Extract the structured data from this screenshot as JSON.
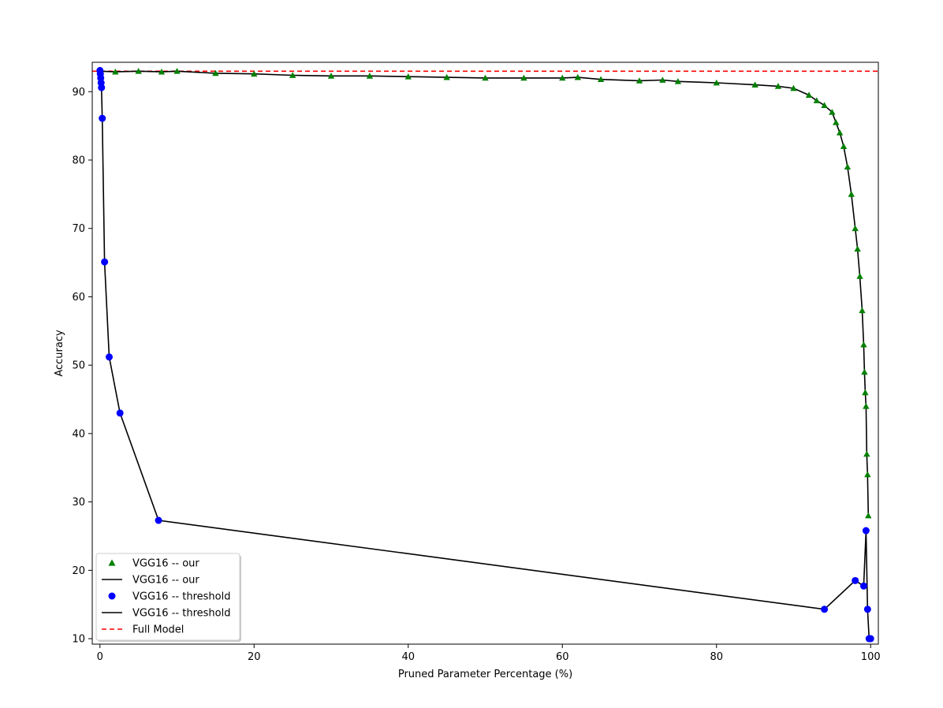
{
  "chart_data": {
    "type": "line",
    "title": "",
    "xlabel": "Pruned Parameter Percentage (%)",
    "ylabel": "Accuracy",
    "xlim": [
      -1,
      101
    ],
    "ylim": [
      9.2,
      94.3
    ],
    "xticks": [
      0,
      20,
      40,
      60,
      80,
      100
    ],
    "yticks": [
      10,
      20,
      30,
      40,
      50,
      60,
      70,
      80,
      90
    ],
    "grid": false,
    "legend_position": "lower-left",
    "legend": [
      {
        "label": "VGG16 -- our",
        "kind": "marker",
        "marker": "triangle",
        "color": "#008000"
      },
      {
        "label": "VGG16 -- our",
        "kind": "line",
        "color": "#000000"
      },
      {
        "label": "VGG16 -- threshold",
        "kind": "marker",
        "marker": "circle",
        "color": "#0000ff"
      },
      {
        "label": "VGG16 -- threshold",
        "kind": "line",
        "color": "#000000"
      },
      {
        "label": "Full Model",
        "kind": "dashed",
        "color": "#ff0000"
      }
    ],
    "series": [
      {
        "name": "VGG16 -- our",
        "marker": "triangle",
        "marker_color": "#008000",
        "line_color": "#000000",
        "x": [
          0,
          2,
          5,
          8,
          10,
          15,
          20,
          25,
          30,
          35,
          40,
          45,
          50,
          55,
          60,
          62,
          65,
          70,
          73,
          75,
          80,
          85,
          88,
          90,
          92,
          93,
          94,
          95,
          95.5,
          96,
          96.5,
          97,
          97.5,
          98,
          98.3,
          98.6,
          98.9,
          99.1,
          99.2,
          99.3,
          99.4,
          99.5,
          99.6,
          99.7
        ],
        "y": [
          93.0,
          92.9,
          93.0,
          92.9,
          93.0,
          92.7,
          92.6,
          92.4,
          92.3,
          92.3,
          92.2,
          92.1,
          92.0,
          92.0,
          92.0,
          92.1,
          91.8,
          91.6,
          91.7,
          91.5,
          91.3,
          91.0,
          90.8,
          90.5,
          89.5,
          88.7,
          88.0,
          87.0,
          85.5,
          84.0,
          82.0,
          79.0,
          75.0,
          70.0,
          67.0,
          63.0,
          58.0,
          53.0,
          49.0,
          46.0,
          44.0,
          37.0,
          34.0,
          28.0
        ]
      },
      {
        "name": "VGG16 -- threshold",
        "marker": "circle",
        "marker_color": "#0000ff",
        "line_color": "#000000",
        "x": [
          0,
          0.05,
          0.1,
          0.15,
          0.2,
          0.3,
          0.6,
          1.2,
          2.6,
          7.6,
          94.0,
          98.0,
          99.1,
          99.4,
          99.6,
          99.8,
          100.0
        ],
        "y": [
          93.1,
          92.6,
          92.0,
          91.3,
          90.6,
          86.1,
          65.1,
          51.2,
          43.0,
          27.3,
          14.3,
          18.5,
          17.7,
          25.8,
          14.3,
          10.0,
          10.0
        ]
      }
    ],
    "reference_line": {
      "name": "Full Model",
      "y": 93.0,
      "color": "#ff0000",
      "style": "dashed"
    }
  }
}
